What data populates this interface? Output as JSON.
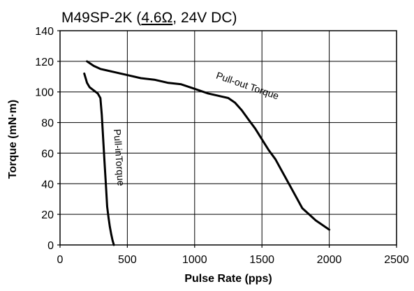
{
  "chart_data": {
    "type": "line",
    "title": {
      "prefix": "M49SP-2K (",
      "underlined": "4.6Ω",
      "suffix": ", 24V DC)"
    },
    "xlabel": "Pulse Rate (pps)",
    "ylabel": "Torque (mN·m)",
    "xlim": [
      0,
      2500
    ],
    "ylim": [
      0,
      140
    ],
    "xticks": [
      0,
      500,
      1000,
      1500,
      2000,
      2500
    ],
    "yticks": [
      0,
      20,
      40,
      60,
      80,
      100,
      120,
      140
    ],
    "grid": true,
    "series": [
      {
        "name": "Pull-out Torque",
        "x": [
          200,
          250,
          300,
          350,
          400,
          500,
          600,
          700,
          800,
          900,
          1000,
          1100,
          1200,
          1250,
          1300,
          1350,
          1400,
          1450,
          1500,
          1550,
          1600,
          1650,
          1700,
          1750,
          1800,
          1850,
          1900,
          1950,
          2000
        ],
        "y": [
          120,
          117,
          115,
          114,
          113,
          111,
          109,
          108,
          106,
          105,
          102,
          99,
          97,
          96,
          93,
          88,
          82,
          76,
          69,
          62,
          56,
          48,
          40,
          32,
          24,
          20,
          16,
          13,
          10
        ]
      },
      {
        "name": "Pull-inTorque",
        "x": [
          180,
          200,
          220,
          250,
          280,
          300,
          310,
          320,
          330,
          340,
          350,
          360,
          370,
          380,
          390,
          400
        ],
        "y": [
          112,
          106,
          103,
          101,
          99,
          96,
          85,
          70,
          55,
          40,
          25,
          18,
          12,
          7,
          3,
          0
        ]
      }
    ]
  }
}
